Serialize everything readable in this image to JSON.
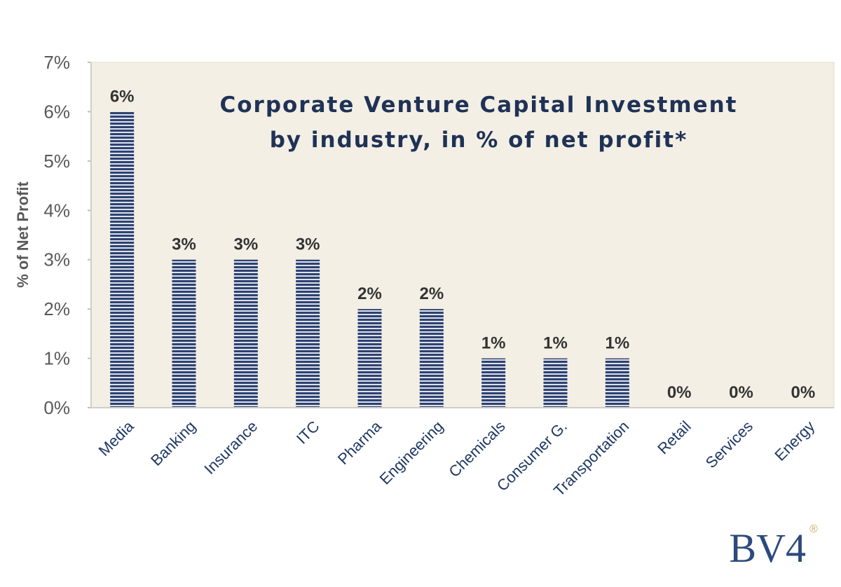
{
  "chart_data": {
    "type": "bar",
    "title": [
      "Corporate Venture Capital Investment",
      "by industry, in % of net profit*"
    ],
    "xlabel": "",
    "ylabel": "% of Net Profit",
    "ylim": [
      0,
      7
    ],
    "yticks": [
      "0%",
      "1%",
      "2%",
      "3%",
      "4%",
      "5%",
      "6%",
      "7%"
    ],
    "categories": [
      "Media",
      "Banking",
      "Insurance",
      "ITC",
      "Pharma",
      "Engineering",
      "Chemicals",
      "Consumer G.",
      "Transportation",
      "Retail",
      "Services",
      "Energy"
    ],
    "values": [
      6,
      3,
      3,
      3,
      2,
      2,
      1,
      1,
      1,
      0,
      0,
      0
    ],
    "data_labels": [
      "6%",
      "3%",
      "3%",
      "3%",
      "2%",
      "2%",
      "1%",
      "1%",
      "1%",
      "0%",
      "0%",
      "0%"
    ],
    "grid": false,
    "legend": "none"
  },
  "colors": {
    "plot_background": "#f3efe4",
    "bar_dark": "#2f4270",
    "bar_light": "#dbe1ee",
    "axis": "#bfbfbf"
  },
  "logo": {
    "text": "BV4",
    "mark": "®"
  }
}
